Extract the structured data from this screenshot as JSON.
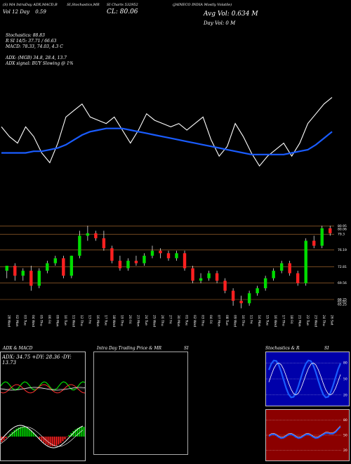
{
  "header": {
    "line1": "(S) MA IntraDay ADX,MACD,B",
    "line1b": "SI,Stochastics,MR",
    "line1c": "SI Charts 532952",
    "line1d": "(JAINECO INDIA Mostly Volatile)",
    "line2a": "Vol 12 Day",
    "line2b": "0.59",
    "close_label": "CL: 80.06",
    "avg_vol": "Avg Vol: 0.634  M",
    "day_vol": "Day Vol: 0   M",
    "stoch": "Stochastics: 88.83",
    "r_si": "R              SI 14/5: 37.71 / 66.63",
    "macd": "MACD: 78.33, 74.03, 4.3 C",
    "adx": "ADX:                             (MGB) 34.8,  28.4,  13.7",
    "adx_signal": "ADX  signal:                               BUY Slowing @ 1%"
  },
  "panels": {
    "adx_macd_title": "ADX  & MACD",
    "adx_values": "ADX: 34.75  +DY: 28.36  -DY: 13.73",
    "intraday_title": "Intra  Day Trading Price  & MR",
    "intraday_si": "SI",
    "stoch_title": "Stochastics & R",
    "stoch_si": "SI",
    "stoch_ticks": [
      "80",
      "50",
      "20"
    ],
    "rsi_ticks": [
      "80",
      "50",
      "20"
    ]
  },
  "chart_data": [
    {
      "type": "line",
      "series": [
        {
          "values": [
            83,
            80,
            78,
            83,
            80,
            75,
            72,
            78,
            86,
            88,
            90,
            86,
            85,
            84,
            86,
            82,
            78,
            82,
            87,
            85,
            84,
            83,
            84,
            82,
            84,
            86,
            79,
            74,
            77,
            84,
            80,
            75,
            71,
            74,
            76,
            78,
            74,
            78,
            84,
            87,
            90,
            92
          ]
        },
        {
          "values": [
            75,
            75,
            75,
            75,
            75.5,
            75.5,
            76,
            76.5,
            77.5,
            79,
            80.5,
            81.5,
            82,
            82.5,
            82.5,
            82.5,
            82,
            81.5,
            81,
            80.5,
            80,
            79.5,
            79,
            78.5,
            78,
            77.5,
            77,
            76.5,
            76,
            75.5,
            75,
            74.5,
            74.5,
            74.5,
            74.5,
            74.5,
            75,
            75.5,
            76,
            77.5,
            79.5,
            81.5
          ]
        }
      ]
    },
    {
      "type": "candlestick",
      "yticks": [
        "80.95",
        "80.06",
        "79.3",
        "76.19",
        "72.81",
        "69.56",
        "66.25",
        "65.85",
        "65.25"
      ],
      "x_labels": [
        "28 Wed",
        "02 Mon",
        "03 Tue",
        "04 Wed",
        "05 Thu",
        "06 Fri",
        "09 Mon",
        "10 Tue",
        "11 Wed",
        "12 Thu",
        "13 Fri",
        "16 Mon",
        "17 Tue",
        "18 Wed",
        "19 Thu",
        "20 Fri",
        "23 Mon",
        "24 Tue",
        "25 Wed",
        "26 Thu",
        "27 Fri",
        "30 Mon",
        "01 Tue",
        "02 Wed",
        "03 Thu",
        "04 Fri",
        "07 Mon",
        "08 Tue",
        "09 Wed",
        "10 Thu",
        "11 Fri",
        "14 Mon",
        "15 Tue",
        "16 Wed",
        "17 Thu",
        "18 Fri",
        "21 Mon",
        "22 Tue",
        "23 Wed",
        "24 Thu",
        "26 Sat"
      ],
      "ylim": [
        64,
        82
      ],
      "candles": [
        {
          "o": 72.0,
          "h": 73.0,
          "l": 70.5,
          "c": 73.0
        },
        {
          "o": 73.0,
          "h": 73.5,
          "l": 70.0,
          "c": 71.0
        },
        {
          "o": 71.0,
          "h": 72.5,
          "l": 70.0,
          "c": 72.0
        },
        {
          "o": 72.0,
          "h": 73.0,
          "l": 68.0,
          "c": 69.0
        },
        {
          "o": 69.0,
          "h": 72.5,
          "l": 68.5,
          "c": 72.0
        },
        {
          "o": 72.0,
          "h": 74.0,
          "l": 71.5,
          "c": 73.5
        },
        {
          "o": 73.5,
          "h": 75.0,
          "l": 73.0,
          "c": 74.5
        },
        {
          "o": 74.5,
          "h": 75.0,
          "l": 70.5,
          "c": 71.0
        },
        {
          "o": 71.0,
          "h": 75.0,
          "l": 70.5,
          "c": 75.0
        },
        {
          "o": 75.0,
          "h": 80.0,
          "l": 74.5,
          "c": 79.0
        },
        {
          "o": 79.0,
          "h": 81.0,
          "l": 78.0,
          "c": 79.5
        },
        {
          "o": 79.5,
          "h": 80.0,
          "l": 78.0,
          "c": 78.5
        },
        {
          "o": 78.5,
          "h": 80.0,
          "l": 76.0,
          "c": 76.5
        },
        {
          "o": 76.5,
          "h": 77.0,
          "l": 73.5,
          "c": 74.0
        },
        {
          "o": 74.0,
          "h": 75.0,
          "l": 72.0,
          "c": 72.5
        },
        {
          "o": 72.5,
          "h": 74.5,
          "l": 72.0,
          "c": 74.0
        },
        {
          "o": 74.0,
          "h": 75.0,
          "l": 73.0,
          "c": 73.5
        },
        {
          "o": 73.5,
          "h": 75.5,
          "l": 73.0,
          "c": 75.0
        },
        {
          "o": 75.0,
          "h": 77.0,
          "l": 74.5,
          "c": 76.0
        },
        {
          "o": 76.0,
          "h": 76.5,
          "l": 74.5,
          "c": 75.5
        },
        {
          "o": 75.5,
          "h": 76.0,
          "l": 74.0,
          "c": 74.5
        },
        {
          "o": 74.5,
          "h": 76.0,
          "l": 74.0,
          "c": 75.5
        },
        {
          "o": 75.5,
          "h": 76.0,
          "l": 72.0,
          "c": 72.5
        },
        {
          "o": 72.5,
          "h": 73.0,
          "l": 69.5,
          "c": 70.0
        },
        {
          "o": 70.0,
          "h": 71.5,
          "l": 69.5,
          "c": 70.5
        },
        {
          "o": 70.5,
          "h": 72.0,
          "l": 70.0,
          "c": 71.5
        },
        {
          "o": 71.5,
          "h": 72.0,
          "l": 69.5,
          "c": 70.0
        },
        {
          "o": 70.0,
          "h": 70.5,
          "l": 67.5,
          "c": 68.0
        },
        {
          "o": 68.0,
          "h": 68.5,
          "l": 65.0,
          "c": 66.0
        },
        {
          "o": 66.0,
          "h": 67.0,
          "l": 64.5,
          "c": 65.5
        },
        {
          "o": 65.5,
          "h": 68.0,
          "l": 65.0,
          "c": 67.5
        },
        {
          "o": 67.5,
          "h": 69.0,
          "l": 67.0,
          "c": 68.5
        },
        {
          "o": 68.5,
          "h": 71.0,
          "l": 68.0,
          "c": 70.5
        },
        {
          "o": 70.5,
          "h": 72.5,
          "l": 70.0,
          "c": 72.0
        },
        {
          "o": 72.0,
          "h": 74.0,
          "l": 71.5,
          "c": 73.5
        },
        {
          "o": 73.5,
          "h": 74.0,
          "l": 71.0,
          "c": 71.5
        },
        {
          "o": 71.5,
          "h": 72.0,
          "l": 69.0,
          "c": 69.5
        },
        {
          "o": 69.5,
          "h": 78.5,
          "l": 69.0,
          "c": 78.0
        },
        {
          "o": 78.0,
          "h": 79.0,
          "l": 76.5,
          "c": 77.0
        },
        {
          "o": 77.0,
          "h": 81.0,
          "l": 76.5,
          "c": 80.5
        },
        {
          "o": 80.5,
          "h": 81.0,
          "l": 79.0,
          "c": 79.5
        }
      ]
    }
  ],
  "colors": {
    "up": "#00dd00",
    "down": "#ff2020",
    "blue_line": "#1a5cff",
    "grid_orange": "#b87333",
    "panel_border": "#c0c0c0"
  }
}
